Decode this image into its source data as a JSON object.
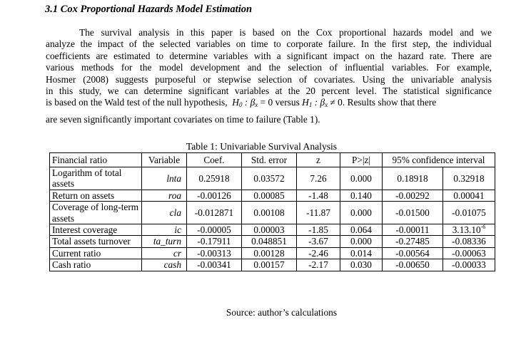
{
  "section": {
    "heading": "3.1 Cox Proportional Hazards Model Estimation"
  },
  "paragraph": {
    "lines": [
      "The survival analysis in this paper is based on the Cox proportional hazards model and we",
      "analyze the impact of the selected variables on time to corporate failure. In the first step, the individual",
      "coefficients are estimated to determine variables with a significant impact on the hazard rate. There are",
      "various methods for the model development and the selection of influential variables. For example,",
      "Hosmer (2008) suggests purposeful or stepwise selection of covariates. Using the univariable analysis",
      "in this study, we can determine significant variables at the 20 percent level. The statistical significance"
    ],
    "line7_pre": "is based on the Wald test of the null hypothesis,",
    "h0_text": "H",
    "h0_sub": "0",
    "h0_rest": " : β",
    "h0_beta_sub": "x",
    "h0_eq": " = 0",
    "versus": " versus ",
    "h1_text": "H",
    "h1_sub": "1",
    "h1_rest": " : β",
    "h1_beta_sub": "x",
    "h1_neq": " ≠ 0",
    "line7_post": ". Results show that there",
    "line8": "are seven significantly important covariates on time to failure (Table 1)."
  },
  "table": {
    "caption": "Table 1: Univariable Survival Analysis",
    "headers": [
      "Financial ratio",
      "Variable",
      "Coef.",
      "Std. error",
      "z",
      "P>|z|",
      "95% confidence interval"
    ],
    "rows": [
      {
        "ratio": "Logarithm of total assets",
        "var": "lnta",
        "coef": "0.25918",
        "se": "0.03572",
        "z": "7.26",
        "p": "0.000",
        "ci_low": "0.18918",
        "ci_high": "0.32918"
      },
      {
        "ratio": "Return on assets",
        "var": "roa",
        "coef": "-0.00126",
        "se": "0.00085",
        "z": "-1.48",
        "p": "0.140",
        "ci_low": "-0.00292",
        "ci_high": "0.00041"
      },
      {
        "ratio": "Coverage of long-term assets",
        "var": "cla",
        "coef": "-0.012871",
        "se": "0.00108",
        "z": "-11.87",
        "p": "0.000",
        "ci_low": "-0.01500",
        "ci_high": "-0.01075"
      },
      {
        "ratio": "Interest coverage",
        "var": "ic",
        "coef": "-0.00005",
        "se": "0.00003",
        "z": "-1.85",
        "p": "0.064",
        "ci_low": "-0.00011",
        "ci_high": "3.13.10",
        "ci_high_sup": "-6"
      },
      {
        "ratio": "Total assets turnover",
        "var": "ta_turn",
        "coef": "-0.17911",
        "se": "0.048851",
        "z": "-3.67",
        "p": "0.000",
        "ci_low": "-0.27485",
        "ci_high": "-0.08336"
      },
      {
        "ratio": "Current ratio",
        "var": "cr",
        "coef": "-0.00313",
        "se": "0.00128",
        "z": "-2.46",
        "p": "0.014",
        "ci_low": "-0.00564",
        "ci_high": "-0.00063"
      },
      {
        "ratio": "Cash ratio",
        "var": "cash",
        "coef": "-0.00341",
        "se": "0.00157",
        "z": "-2.17",
        "p": "0.030",
        "ci_low": "-0.00650",
        "ci_high": "-0.00033"
      }
    ],
    "source": "Source: author’s calculations"
  }
}
